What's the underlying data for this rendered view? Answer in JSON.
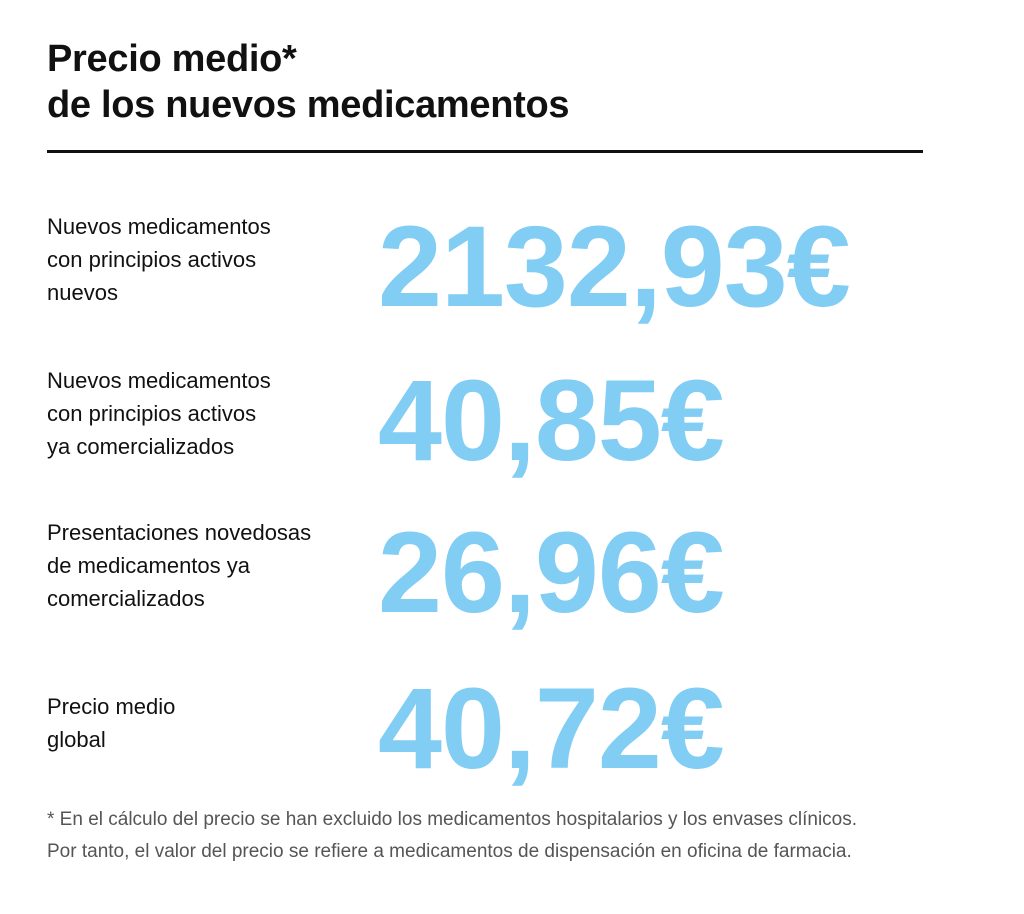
{
  "title_line1": "Precio medio*",
  "title_line2": "de los nuevos medicamentos",
  "accent_color": "#82CDF3",
  "items": [
    {
      "label": [
        "Nuevos medicamentos",
        "con principios activos",
        "nuevos"
      ],
      "value": "2132,93€"
    },
    {
      "label": [
        "Nuevos medicamentos",
        "con principios activos",
        "ya comercializados"
      ],
      "value": "40,85€"
    },
    {
      "label": [
        "Presentaciones novedosas",
        "de medicamentos ya",
        "comercializados"
      ],
      "value": "26,96€"
    },
    {
      "label": [
        "Precio medio",
        "global"
      ],
      "value": "40,72€"
    }
  ],
  "footnote_line1": "* En el cálculo del precio se han excluido los medicamentos hospitalarios y los envases clínicos.",
  "footnote_line2": "Por tanto, el valor del precio se refiere a medicamentos de dispensación en oficina de farmacia."
}
